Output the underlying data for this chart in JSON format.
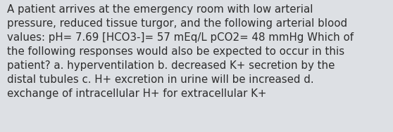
{
  "lines": [
    "A patient arrives at the emergency room with low arterial",
    "pressure, reduced tissue turgor, and the following arterial blood",
    "values: pH= 7.69 [HCO3-]= 57 mEq/L pCO2= 48 mmHg Which of",
    "the following responses would also be expected to occur in this",
    "patient? a. hyperventilation b. decreased K+ secretion by the",
    "distal tubules c. H+ excretion in urine will be increased d.",
    "exchange of intracellular H+ for extracellular K+"
  ],
  "background_color": "#dde0e4",
  "text_color": "#2d2d2d",
  "font_size": 10.8,
  "fig_width": 5.58,
  "fig_height": 1.88,
  "dpi": 100
}
